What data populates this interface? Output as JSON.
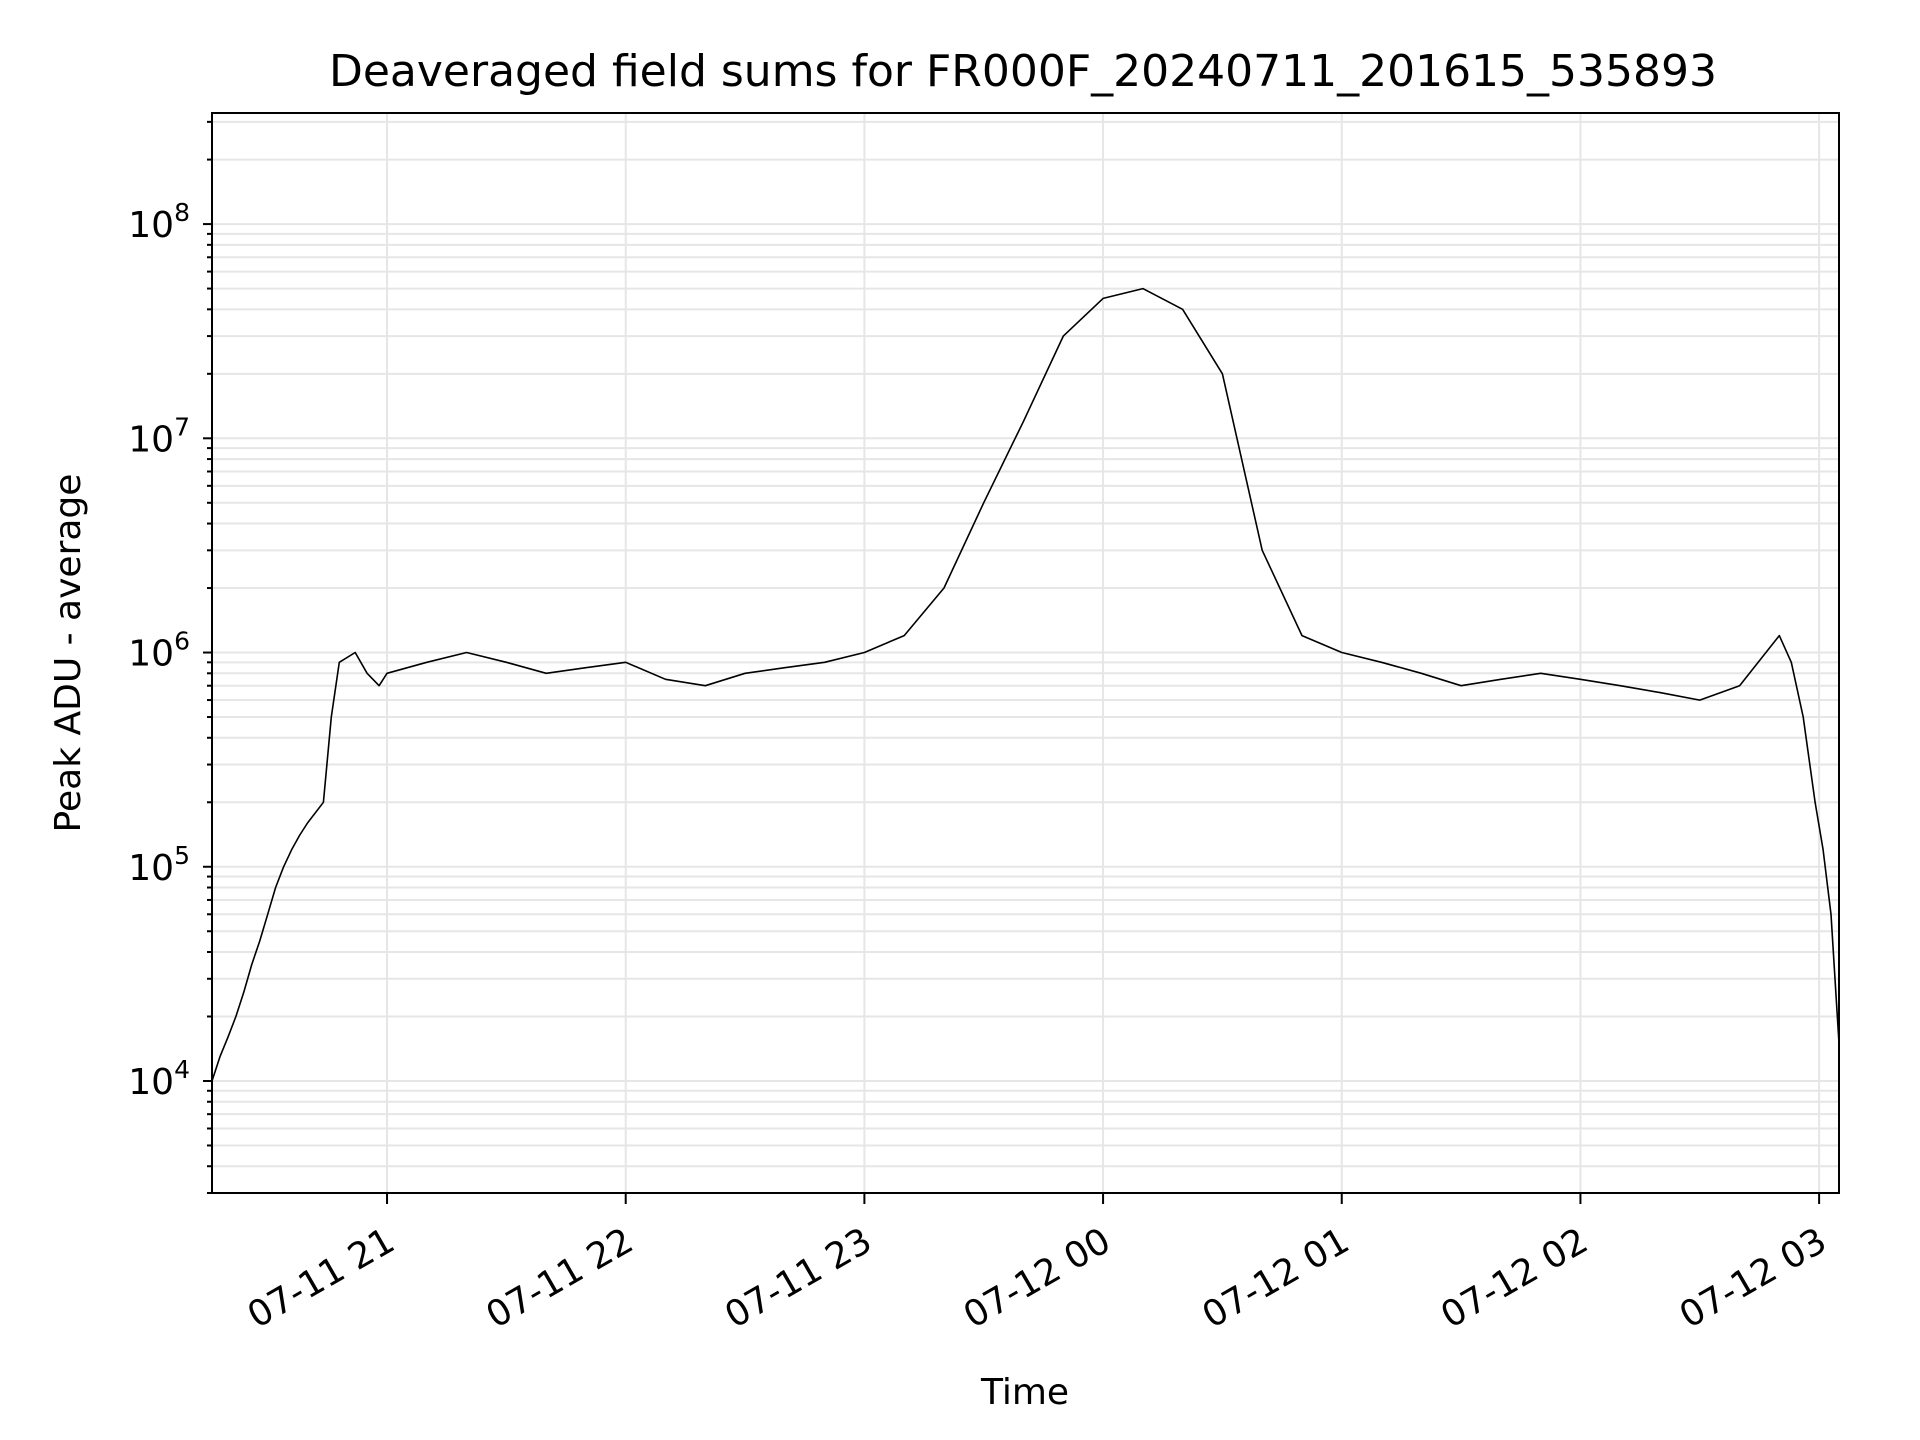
{
  "chart_data": {
    "type": "line",
    "title": "Deaveraged field sums for FR000F_20240711_201615_535893",
    "xlabel": "Time",
    "ylabel": "Peak ADU - average",
    "y_scale": "log",
    "xlim": [
      "2024-07-11 20:16",
      "2024-07-12 03:05"
    ],
    "ylim": [
      3000,
      330000000
    ],
    "x_ticks": [
      {
        "value": "2024-07-11 21:00",
        "label": "07-11 21"
      },
      {
        "value": "2024-07-11 22:00",
        "label": "07-11 22"
      },
      {
        "value": "2024-07-11 23:00",
        "label": "07-11 23"
      },
      {
        "value": "2024-07-12 00:00",
        "label": "07-12 00"
      },
      {
        "value": "2024-07-12 01:00",
        "label": "07-12 01"
      },
      {
        "value": "2024-07-12 02:00",
        "label": "07-12 02"
      },
      {
        "value": "2024-07-12 03:00",
        "label": "07-12 03"
      }
    ],
    "y_ticks": [
      {
        "value": 10000,
        "base": "10",
        "exp": "4"
      },
      {
        "value": 100000,
        "base": "10",
        "exp": "5"
      },
      {
        "value": 1000000,
        "base": "10",
        "exp": "6"
      },
      {
        "value": 10000000,
        "base": "10",
        "exp": "7"
      },
      {
        "value": 100000000,
        "base": "10",
        "exp": "8"
      }
    ],
    "grid": "major and minor",
    "line_color": "#000000",
    "grid_color": "#e6e6e6",
    "series": [
      {
        "x": [
          "2024-07-11 20:16",
          "2024-07-11 20:18",
          "2024-07-11 20:20",
          "2024-07-11 20:22",
          "2024-07-11 20:24",
          "2024-07-11 20:26",
          "2024-07-11 20:28",
          "2024-07-11 20:30",
          "2024-07-11 20:32",
          "2024-07-11 20:34",
          "2024-07-11 20:36",
          "2024-07-11 20:38",
          "2024-07-11 20:40",
          "2024-07-11 20:44",
          "2024-07-11 20:46",
          "2024-07-11 20:48",
          "2024-07-11 20:52",
          "2024-07-11 20:55",
          "2024-07-11 20:58",
          "2024-07-11 21:00",
          "2024-07-11 21:10",
          "2024-07-11 21:20",
          "2024-07-11 21:30",
          "2024-07-11 21:40",
          "2024-07-11 21:50",
          "2024-07-11 22:00",
          "2024-07-11 22:10",
          "2024-07-11 22:20",
          "2024-07-11 22:30",
          "2024-07-11 22:40",
          "2024-07-11 22:50",
          "2024-07-11 23:00",
          "2024-07-11 23:10",
          "2024-07-11 23:20",
          "2024-07-11 23:30",
          "2024-07-11 23:40",
          "2024-07-11 23:50",
          "2024-07-12 00:00",
          "2024-07-12 00:10",
          "2024-07-12 00:20",
          "2024-07-12 00:30",
          "2024-07-12 00:40",
          "2024-07-12 00:50",
          "2024-07-12 01:00",
          "2024-07-12 01:10",
          "2024-07-12 01:20",
          "2024-07-12 01:30",
          "2024-07-12 01:40",
          "2024-07-12 01:50",
          "2024-07-12 02:00",
          "2024-07-12 02:10",
          "2024-07-12 02:20",
          "2024-07-12 02:30",
          "2024-07-12 02:40",
          "2024-07-12 02:50",
          "2024-07-12 02:53",
          "2024-07-12 02:56",
          "2024-07-12 02:59",
          "2024-07-12 03:01",
          "2024-07-12 03:03",
          "2024-07-12 03:05"
        ],
        "y": [
          10000,
          13000,
          16000,
          20000,
          26000,
          35000,
          45000,
          60000,
          80000,
          100000,
          120000,
          140000,
          160000,
          200000,
          500000,
          900000,
          1000000,
          800000,
          700000,
          800000,
          900000,
          1000000,
          900000,
          800000,
          850000,
          900000,
          750000,
          700000,
          800000,
          850000,
          900000,
          1000000,
          1200000,
          2000000,
          5000000,
          12000000,
          30000000,
          45000000,
          50000000,
          40000000,
          20000000,
          3000000,
          1200000,
          1000000,
          900000,
          800000,
          700000,
          750000,
          800000,
          750000,
          700000,
          650000,
          600000,
          700000,
          1200000,
          900000,
          500000,
          200000,
          120000,
          60000,
          15000
        ]
      }
    ]
  }
}
